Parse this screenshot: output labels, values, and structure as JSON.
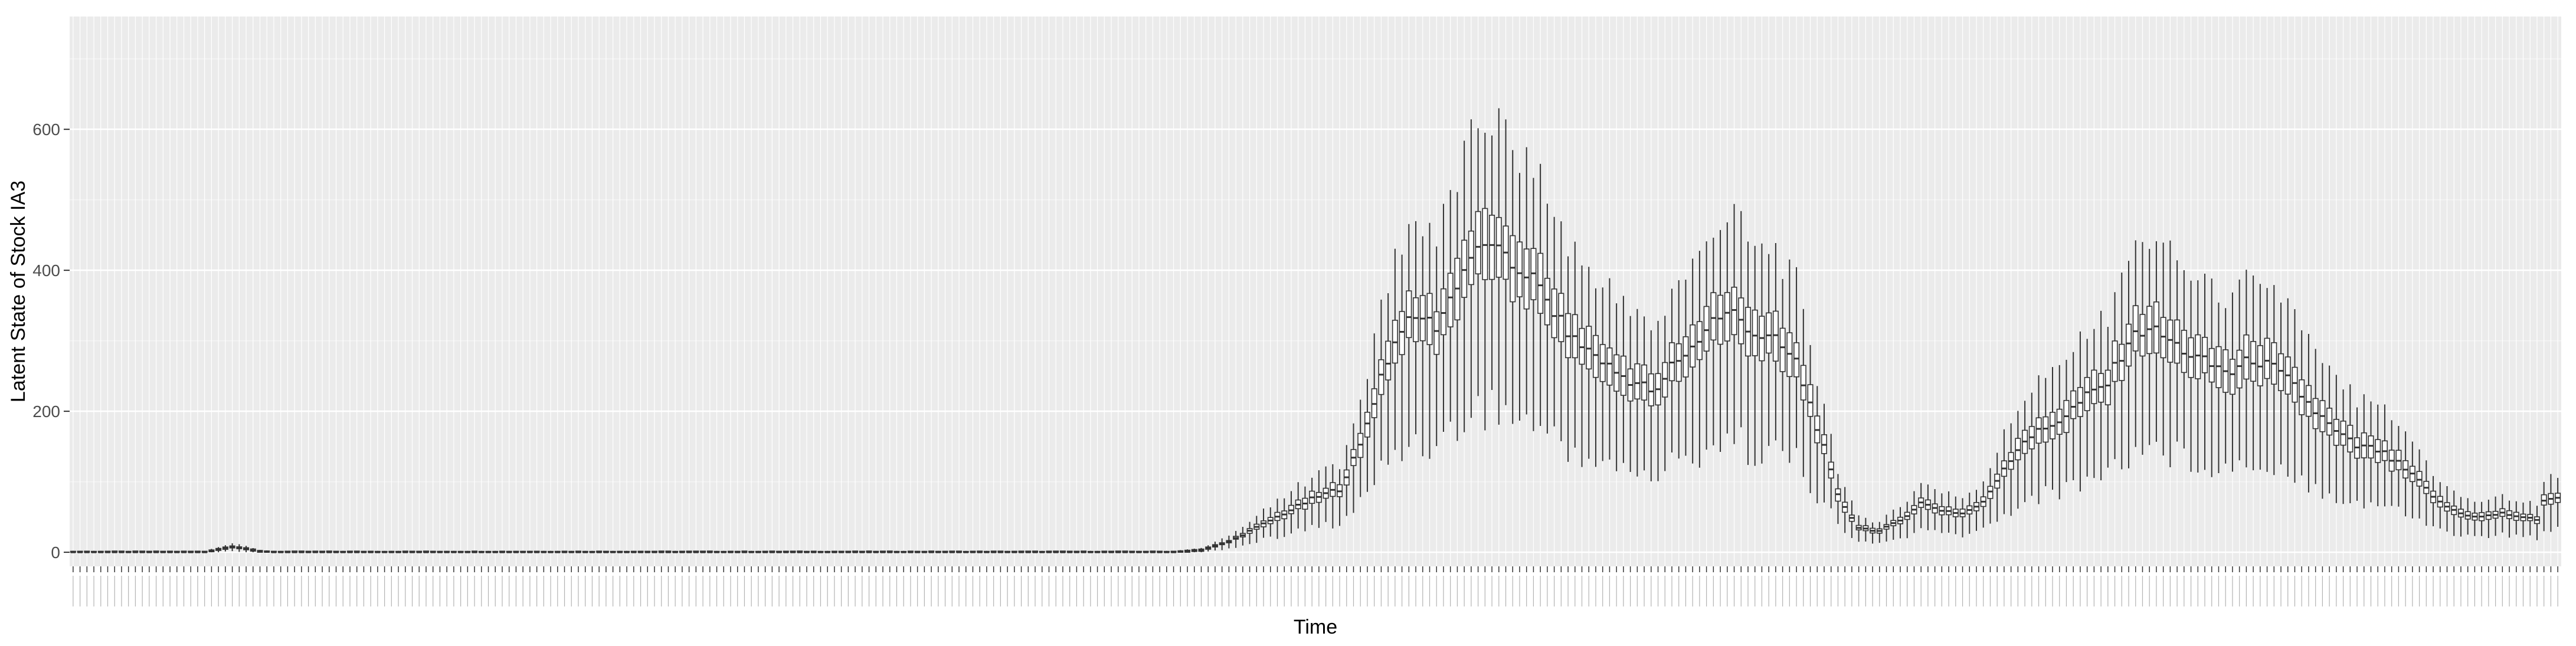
{
  "chart_data": {
    "type": "boxplot",
    "title": "",
    "xlabel": "Time",
    "ylabel": "Latent State of Stock IA3",
    "ylim": [
      -20,
      760
    ],
    "yticks": [
      0,
      200,
      400,
      600
    ],
    "x_tick_labels_legible": false,
    "n_time_points": 360,
    "grid": true,
    "legend": "none",
    "colors": {
      "panel_background": "#ebebeb",
      "grid_major": "#ffffff",
      "box_stroke": "#333333",
      "whisker": "#333333"
    },
    "median_trajectory": [
      {
        "t": 1,
        "y": 0
      },
      {
        "t": 20,
        "y": 0
      },
      {
        "t": 22,
        "y": 4
      },
      {
        "t": 24,
        "y": 8
      },
      {
        "t": 26,
        "y": 5
      },
      {
        "t": 28,
        "y": 1
      },
      {
        "t": 30,
        "y": 0
      },
      {
        "t": 160,
        "y": 0
      },
      {
        "t": 164,
        "y": 3
      },
      {
        "t": 168,
        "y": 15
      },
      {
        "t": 172,
        "y": 35
      },
      {
        "t": 176,
        "y": 55
      },
      {
        "t": 180,
        "y": 75
      },
      {
        "t": 184,
        "y": 90
      },
      {
        "t": 187,
        "y": 150
      },
      {
        "t": 190,
        "y": 250
      },
      {
        "t": 193,
        "y": 320
      },
      {
        "t": 196,
        "y": 335
      },
      {
        "t": 198,
        "y": 320
      },
      {
        "t": 200,
        "y": 360
      },
      {
        "t": 203,
        "y": 420
      },
      {
        "t": 206,
        "y": 440
      },
      {
        "t": 209,
        "y": 405
      },
      {
        "t": 212,
        "y": 390
      },
      {
        "t": 215,
        "y": 340
      },
      {
        "t": 218,
        "y": 300
      },
      {
        "t": 221,
        "y": 280
      },
      {
        "t": 224,
        "y": 255
      },
      {
        "t": 227,
        "y": 240
      },
      {
        "t": 230,
        "y": 225
      },
      {
        "t": 232,
        "y": 265
      },
      {
        "t": 235,
        "y": 290
      },
      {
        "t": 238,
        "y": 330
      },
      {
        "t": 241,
        "y": 340
      },
      {
        "t": 244,
        "y": 310
      },
      {
        "t": 247,
        "y": 300
      },
      {
        "t": 250,
        "y": 270
      },
      {
        "t": 253,
        "y": 180
      },
      {
        "t": 256,
        "y": 80
      },
      {
        "t": 259,
        "y": 35
      },
      {
        "t": 262,
        "y": 30
      },
      {
        "t": 265,
        "y": 45
      },
      {
        "t": 268,
        "y": 70
      },
      {
        "t": 271,
        "y": 60
      },
      {
        "t": 274,
        "y": 55
      },
      {
        "t": 277,
        "y": 70
      },
      {
        "t": 280,
        "y": 120
      },
      {
        "t": 283,
        "y": 160
      },
      {
        "t": 286,
        "y": 175
      },
      {
        "t": 289,
        "y": 195
      },
      {
        "t": 292,
        "y": 220
      },
      {
        "t": 295,
        "y": 240
      },
      {
        "t": 298,
        "y": 300
      },
      {
        "t": 301,
        "y": 320
      },
      {
        "t": 304,
        "y": 300
      },
      {
        "t": 307,
        "y": 280
      },
      {
        "t": 310,
        "y": 265
      },
      {
        "t": 313,
        "y": 255
      },
      {
        "t": 316,
        "y": 275
      },
      {
        "t": 319,
        "y": 260
      },
      {
        "t": 322,
        "y": 235
      },
      {
        "t": 325,
        "y": 200
      },
      {
        "t": 328,
        "y": 170
      },
      {
        "t": 331,
        "y": 150
      },
      {
        "t": 334,
        "y": 145
      },
      {
        "t": 337,
        "y": 125
      },
      {
        "t": 340,
        "y": 100
      },
      {
        "t": 343,
        "y": 70
      },
      {
        "t": 346,
        "y": 55
      },
      {
        "t": 349,
        "y": 50
      },
      {
        "t": 352,
        "y": 55
      },
      {
        "t": 355,
        "y": 50
      },
      {
        "t": 357,
        "y": 45
      },
      {
        "t": 358,
        "y": 75
      },
      {
        "t": 360,
        "y": 78
      }
    ]
  }
}
